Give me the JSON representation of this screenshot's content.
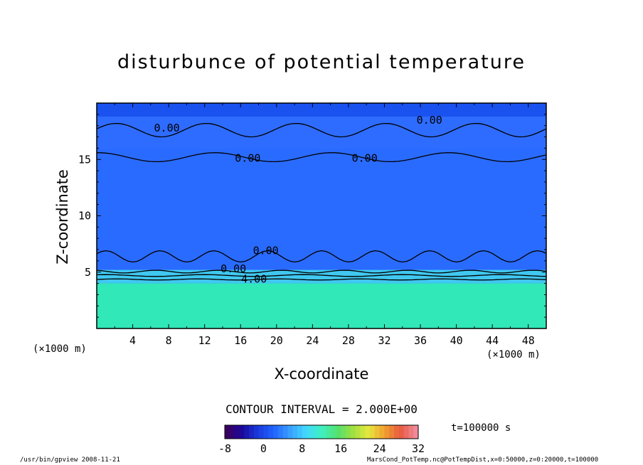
{
  "chart_data": {
    "type": "heatmap",
    "title": "disturbunce of potential temperature",
    "xlabel": "X-coordinate",
    "ylabel": "Z-coordinate",
    "x_unit": "(×1000 m)",
    "y_unit": "(×1000 m)",
    "xlim": [
      0,
      50
    ],
    "ylim": [
      0,
      20
    ],
    "x_ticks": [
      4,
      8,
      12,
      16,
      20,
      24,
      28,
      32,
      36,
      40,
      44,
      48
    ],
    "y_ticks": [
      5,
      10,
      15
    ],
    "contour_interval_text": "CONTOUR INTERVAL = 2.000E+00",
    "contour_labels": [
      {
        "text": "0.00",
        "x": 7.8,
        "z": 17.8
      },
      {
        "text": "0.00",
        "x": 16.8,
        "z": 15.1
      },
      {
        "text": "0.00",
        "x": 29.8,
        "z": 15.1
      },
      {
        "text": "0.00",
        "x": 37.0,
        "z": 18.5
      },
      {
        "text": "0.00",
        "x": 18.8,
        "z": 6.9
      },
      {
        "text": "0.00",
        "x": 15.2,
        "z": 5.3
      },
      {
        "text": "4.00",
        "x": 17.5,
        "z": 4.4
      }
    ],
    "colorbar": {
      "min": -8,
      "max": 32,
      "tick_labels": [
        "-8",
        "0",
        "8",
        "16",
        "24",
        "32"
      ],
      "colors": [
        "#3a0060",
        "#1a0aa0",
        "#1a3ce0",
        "#2266ff",
        "#3aa0ff",
        "#40d8ff",
        "#3ff0c0",
        "#52e070",
        "#a0e040",
        "#e8e840",
        "#f0a030",
        "#e85a40",
        "#f08a9a"
      ]
    },
    "field_colors": {
      "top_band": "#1a52f0",
      "upper_layer": "#2e6cff",
      "bulk": "#2a6bff",
      "transition": "#40c8f0",
      "bottom_layer": "#30e8b8"
    },
    "time_label": "t=100000 s"
  },
  "footer": {
    "left": "/usr/bin/gpview   2008-11-21",
    "right": "MarsCond_PotTemp.nc@PotTempDist,x=0:50000,z=0:20000,t=100000"
  }
}
